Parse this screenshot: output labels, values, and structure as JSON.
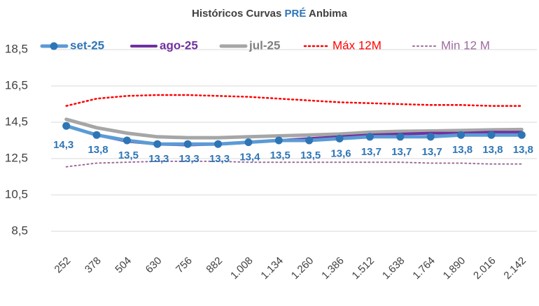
{
  "chart_data": {
    "type": "line",
    "title": [
      "Históricos Curvas ",
      "PRÉ",
      " Anbima"
    ],
    "title_colors": [
      "#404040",
      "#2e75b6",
      "#404040"
    ],
    "categories": [
      "252",
      "378",
      "504",
      "630",
      "756",
      "882",
      "1.008",
      "1.134",
      "1.260",
      "1.386",
      "1.512",
      "1.638",
      "1.764",
      "1.890",
      "2.016",
      "2.142"
    ],
    "series": [
      {
        "name": "set-25",
        "color": "#5b9bd5",
        "marker_color": "#2e75b6",
        "text_color": "#2e75b6",
        "bold": true,
        "style": "solid",
        "width": 5,
        "markers": true,
        "values": [
          14.3,
          13.8,
          13.5,
          13.3,
          13.3,
          13.3,
          13.4,
          13.5,
          13.5,
          13.6,
          13.7,
          13.7,
          13.7,
          13.8,
          13.8,
          13.8
        ],
        "value_labels": [
          "14,3",
          "13,8",
          "13,5",
          "13,3",
          "13,3",
          "13,3",
          "13,4",
          "13,5",
          "13,5",
          "13,6",
          "13,7",
          "13,7",
          "13,7",
          "13,8",
          "13,8",
          "13,8"
        ]
      },
      {
        "name": "ago-25",
        "color": "#7030a0",
        "text_color": "#7030a0",
        "bold": true,
        "style": "solid",
        "width": 4,
        "markers": false,
        "values": [
          14.3,
          13.8,
          13.45,
          13.3,
          13.25,
          13.3,
          13.4,
          13.5,
          13.6,
          13.7,
          13.8,
          13.85,
          13.9,
          13.9,
          13.95,
          13.95
        ]
      },
      {
        "name": "jul-25",
        "color": "#a6a6a6",
        "text_color": "#808080",
        "bold": true,
        "style": "solid",
        "width": 5,
        "markers": false,
        "values": [
          14.66,
          14.2,
          13.9,
          13.7,
          13.65,
          13.65,
          13.7,
          13.75,
          13.8,
          13.85,
          13.95,
          14.0,
          14.02,
          14.05,
          14.08,
          14.1
        ]
      },
      {
        "name": "Máx 12M",
        "color": "#ff0000",
        "text_color": "#ff0000",
        "bold": false,
        "style": "dotted",
        "width": 2.5,
        "markers": false,
        "values": [
          15.4,
          15.8,
          15.95,
          16.0,
          16.0,
          15.95,
          15.9,
          15.8,
          15.7,
          15.6,
          15.55,
          15.5,
          15.45,
          15.45,
          15.4,
          15.4
        ]
      },
      {
        "name": "Min 12 M",
        "color": "#9e6b9e",
        "text_color": "#9e6b9e",
        "bold": false,
        "style": "dotted",
        "width": 2,
        "markers": false,
        "values": [
          12.05,
          12.25,
          12.3,
          12.35,
          12.35,
          12.35,
          12.3,
          12.3,
          12.3,
          12.3,
          12.3,
          12.3,
          12.25,
          12.25,
          12.2,
          12.2
        ]
      }
    ],
    "ylim": [
      7.5,
      19.0
    ],
    "yticks": [
      {
        "value": 8.5,
        "label": "8,5"
      },
      {
        "value": 10.5,
        "label": "10,5"
      },
      {
        "value": 12.5,
        "label": "12,5"
      },
      {
        "value": 14.5,
        "label": "14,5"
      },
      {
        "value": 16.5,
        "label": "16,5"
      },
      {
        "value": 18.5,
        "label": "18,5"
      }
    ],
    "grid": true
  }
}
